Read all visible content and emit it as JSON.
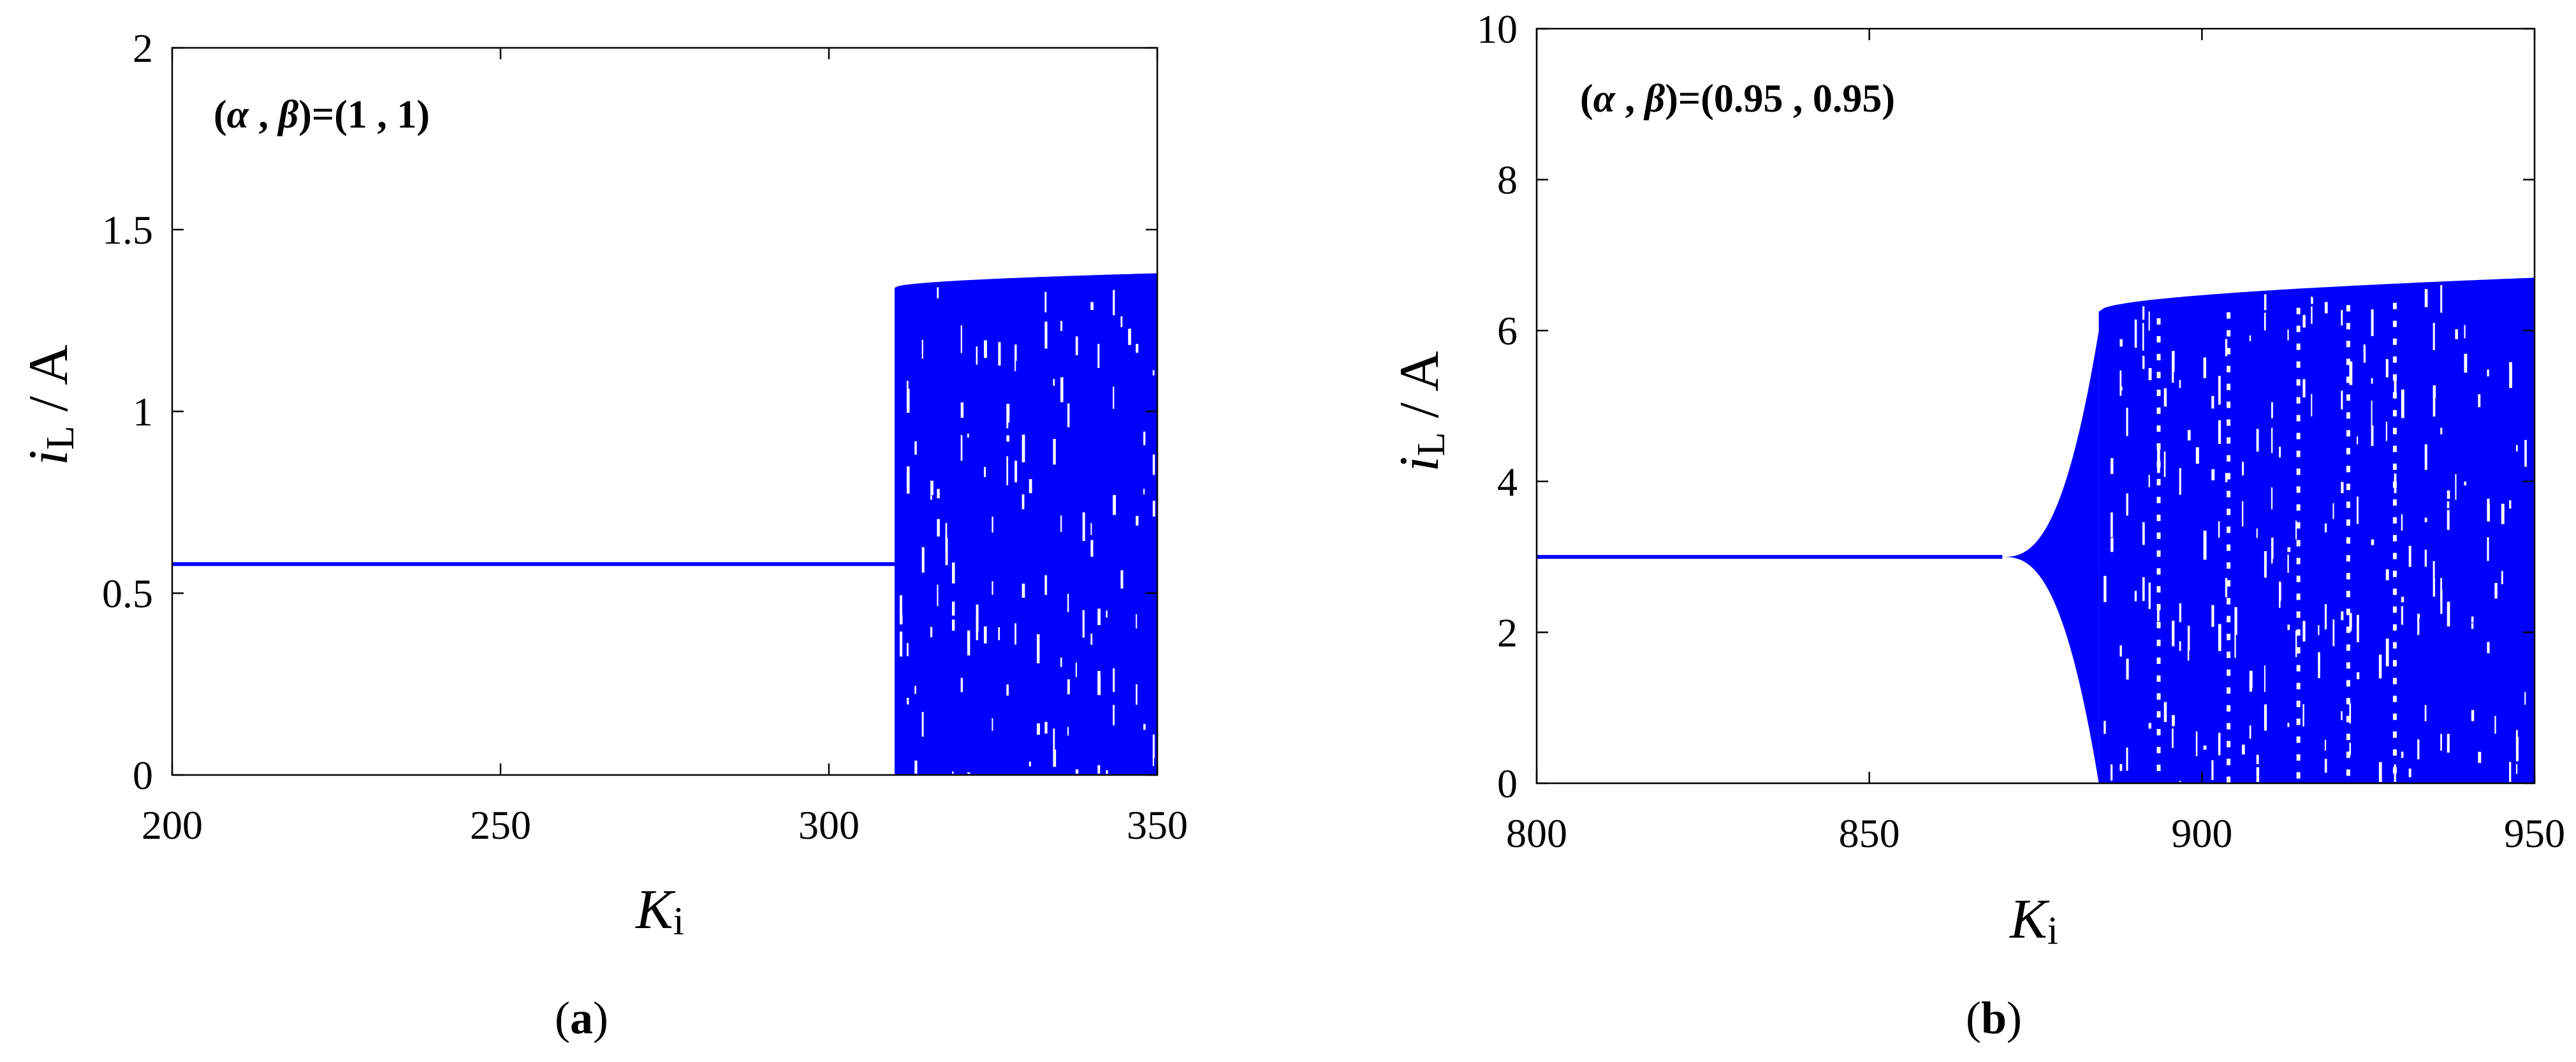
{
  "colors": {
    "series": "#0000ff",
    "axis": "#000000",
    "background": "#ffffff"
  },
  "chart_data": [
    {
      "type": "scatter",
      "subtype": "bifurcation-diagram",
      "panel_caption": "(a)",
      "caption_letter": "a",
      "annotation": {
        "prefix": "(",
        "alpha": "α",
        "sep": " , ",
        "beta": "β",
        "suffix": ")=(1 , 1)"
      },
      "xlabel": {
        "main": "K",
        "sub": "i"
      },
      "ylabel": {
        "main": "i",
        "sub": "L",
        "rest": " / A"
      },
      "xlim": [
        200,
        350
      ],
      "ylim": [
        0,
        2
      ],
      "xticks": [
        200,
        250,
        300,
        350
      ],
      "xtick_labels": [
        "200",
        "250",
        "300",
        "350"
      ],
      "yticks": [
        0,
        0.5,
        1,
        1.5,
        2
      ],
      "ytick_labels": [
        "0",
        "0.5",
        "1",
        "1.5",
        "2"
      ],
      "grid": false,
      "stable_branch": {
        "x_start": 200,
        "x_end": 310,
        "y": 0.58
      },
      "chaotic_region": {
        "x_start": 310,
        "x_end": 350,
        "y_min": 0,
        "y_max_start": 1.34,
        "y_max_end": 1.38
      }
    },
    {
      "type": "scatter",
      "subtype": "bifurcation-diagram",
      "panel_caption": "(b)",
      "caption_letter": "b",
      "annotation": {
        "prefix": "(",
        "alpha": "α",
        "sep": " , ",
        "beta": "β",
        "suffix": ")=(0.95 , 0.95)"
      },
      "xlabel": {
        "main": "K",
        "sub": "i"
      },
      "ylabel": {
        "main": "i",
        "sub": "L",
        "rest": " / A"
      },
      "xlim": [
        800,
        950
      ],
      "ylim": [
        0,
        10
      ],
      "xticks": [
        800,
        850,
        900,
        950
      ],
      "xtick_labels": [
        "800",
        "850",
        "900",
        "950"
      ],
      "yticks": [
        0,
        2,
        4,
        6,
        8,
        10
      ],
      "ytick_labels": [
        "0",
        "2",
        "4",
        "6",
        "8",
        "10"
      ],
      "grid": false,
      "stable_branch": {
        "x_start": 800,
        "x_end": 870,
        "y": 3.0
      },
      "hopf_growth": {
        "x_start": 870,
        "x_end": 884.5,
        "amplitude_end": 3.0
      },
      "chaotic_region": {
        "x_start": 884.5,
        "x_end": 950,
        "y_min": 0,
        "y_max_start": 6.25,
        "y_max_end": 6.7
      }
    }
  ]
}
